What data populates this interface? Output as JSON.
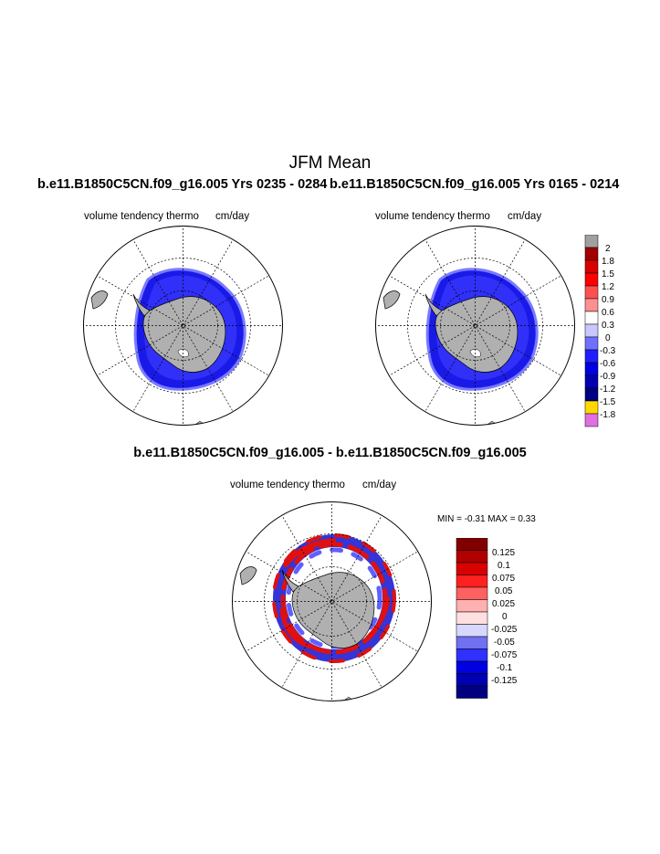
{
  "page": {
    "title": "JFM Mean",
    "left_subtitle": "b.e11.B1850C5CN.f09_g16.005  Yrs 0235 - 0284",
    "right_subtitle": "b.e11.B1850C5CN.f09_g16.005  Yrs 0165 - 0214",
    "diff_title": "b.e11.B1850C5CN.f09_g16.005 - b.e11.B1850C5CN.f09_g16.005"
  },
  "panels": {
    "left": {
      "variable": "volume tendency thermo",
      "units": "cm/day"
    },
    "right": {
      "variable": "volume tendency thermo",
      "units": "cm/day"
    },
    "diff": {
      "variable": "volume tendency thermo",
      "units": "cm/day",
      "min_max": "MIN =  -0.31 MAX =   0.33"
    }
  },
  "colorbar_top": {
    "labels": [
      "2",
      "1.8",
      "1.5",
      "1.2",
      "0.9",
      "0.6",
      "0.3",
      "0",
      "-0.3",
      "-0.6",
      "-0.9",
      "-1.2",
      "-1.5",
      "-1.8"
    ],
    "colors": [
      "#a0a0a0",
      "#a00000",
      "#d80000",
      "#ff0000",
      "#ff5050",
      "#ff9090",
      "#ffffff",
      "#c8c8ff",
      "#7070ff",
      "#2020ff",
      "#0000e0",
      "#0000b0",
      "#000080",
      "#ffd800",
      "#e070e0"
    ]
  },
  "colorbar_diff": {
    "labels": [
      "0.125",
      "0.1",
      "0.075",
      "0.05",
      "0.025",
      "0",
      "-0.025",
      "-0.05",
      "-0.075",
      "-0.1",
      "-0.125"
    ],
    "colors": [
      "#800000",
      "#b00000",
      "#d80000",
      "#ff2020",
      "#ff6060",
      "#ffb0b0",
      "#ffe0e0",
      "#d8d8ff",
      "#7070f0",
      "#3030ff",
      "#0000e0",
      "#0000b0",
      "#000080"
    ]
  },
  "map_colors": {
    "land": "#b0b0b0",
    "ice_blue": "#1a1ae8",
    "ice_mid": "#3a3aff",
    "ice_edge": "#7a7aff",
    "diff_red": "#e01010",
    "diff_blue": "#1010d0"
  }
}
